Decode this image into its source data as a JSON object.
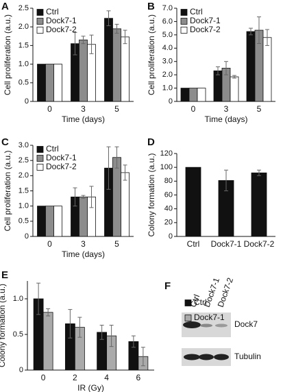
{
  "chart_data": [
    {
      "type": "bar",
      "label": "A",
      "ylabel": "Cell proliferation (a.u.)",
      "xlabel": "Time (days)",
      "categories": [
        "0",
        "3",
        "5"
      ],
      "series": [
        {
          "name": "Ctrl",
          "color": "#111111",
          "values": [
            1,
            1.55,
            2.23
          ],
          "errors": [
            0,
            0.3,
            0.2
          ]
        },
        {
          "name": "Dock7-1",
          "color": "#8c8c8c",
          "values": [
            1,
            1.65,
            1.95
          ],
          "errors": [
            0,
            0.1,
            0.12
          ]
        },
        {
          "name": "Dock7-2",
          "color": "#ffffff",
          "values": [
            1,
            1.53,
            1.73
          ],
          "errors": [
            0,
            0.25,
            0.18
          ]
        }
      ],
      "ylim": [
        0,
        2.5
      ],
      "yticks": [
        0,
        0.5,
        {
          "value": 1,
          "label": "1.0"
        },
        1.5,
        {
          "value": 2,
          "label": "2.0"
        },
        2.5
      ],
      "legend": "top-left"
    },
    {
      "type": "bar",
      "label": "B",
      "ylabel": "Cell proliferation (a.u.)",
      "xlabel": "Time (days)",
      "categories": [
        "0",
        "3",
        "5"
      ],
      "series": [
        {
          "name": "Ctrl",
          "color": "#111111",
          "values": [
            1,
            2.3,
            5.25
          ],
          "errors": [
            0,
            0.3,
            0.25
          ]
        },
        {
          "name": "Dock7-1",
          "color": "#8c8c8c",
          "values": [
            1,
            2.5,
            5.35
          ],
          "errors": [
            0,
            0.5,
            1.0
          ]
        },
        {
          "name": "Dock7-2",
          "color": "#ffffff",
          "values": [
            1,
            1.85,
            4.8
          ],
          "errors": [
            0,
            0.1,
            0.6
          ]
        }
      ],
      "ylim": [
        0,
        7
      ],
      "yticks": [
        0,
        {
          "value": 1,
          "label": "1.0"
        },
        {
          "value": 2,
          "label": "2.0"
        },
        {
          "value": 3,
          "label": "3.0"
        },
        {
          "value": 4,
          "label": "4.0"
        },
        {
          "value": 5,
          "label": "5.0"
        },
        {
          "value": 6,
          "label": "6.0"
        },
        {
          "value": 7,
          "label": "7.0"
        }
      ],
      "legend": "top-left"
    },
    {
      "type": "bar",
      "label": "C",
      "ylabel": "Cell proliferation (a.u.)",
      "xlabel": "Time (days)",
      "categories": [
        "0",
        "3",
        "5"
      ],
      "series": [
        {
          "name": "Ctrl",
          "color": "#111111",
          "values": [
            1,
            1.3,
            2.25
          ],
          "errors": [
            0,
            0.3,
            0.7
          ]
        },
        {
          "name": "Dock7-1",
          "color": "#8c8c8c",
          "values": [
            1,
            1.3,
            2.6
          ],
          "errors": [
            0,
            0.05,
            0.35
          ]
        },
        {
          "name": "Dock7-2",
          "color": "#ffffff",
          "values": [
            1,
            1.3,
            2.1
          ],
          "errors": [
            0,
            0.35,
            0.25
          ]
        }
      ],
      "ylim": [
        0,
        3
      ],
      "yticks": [
        0,
        0.5,
        {
          "value": 1,
          "label": "1.0"
        },
        1.5,
        {
          "value": 2,
          "label": "2.0"
        },
        2.5,
        {
          "value": 3,
          "label": "3.0"
        }
      ],
      "legend": "top-left"
    },
    {
      "type": "bar",
      "label": "D",
      "ylabel": "Colony formation (a.u.)",
      "categories": [
        "Ctrl",
        "Dock7-1",
        "Dock7-2"
      ],
      "values": [
        100,
        81,
        92
      ],
      "errors": [
        0,
        15,
        4
      ],
      "color": "#111111",
      "ylim": [
        0,
        120
      ],
      "yticks": [
        0,
        20,
        40,
        60,
        80,
        100,
        120
      ]
    },
    {
      "type": "bar",
      "label": "E",
      "ylabel": "Colony formation (a.u.)",
      "xlabel": "IR (Gy)",
      "categories": [
        "0",
        "2",
        "4",
        "6"
      ],
      "series": [
        {
          "name": "Ctrl",
          "color": "#111111",
          "values": [
            1.0,
            0.65,
            0.53,
            0.4
          ],
          "errors": [
            0.22,
            0.2,
            0.1,
            0.08
          ]
        },
        {
          "name": "Dock7-1",
          "color": "#aaaaaa",
          "values": [
            0.81,
            0.6,
            0.48,
            0.19
          ],
          "errors": [
            0.05,
            0.14,
            0.15,
            0.13
          ]
        }
      ],
      "ylim": [
        0,
        1.25
      ],
      "yticks": [
        0,
        0.5,
        {
          "value": 1,
          "label": "1.0"
        }
      ],
      "legend": "right"
    }
  ],
  "blot": {
    "label": "F",
    "lanes": [
      "Ctrl",
      "Dock7-1",
      "Dock7-2"
    ],
    "bands": [
      "Dock7",
      "Tubulin"
    ]
  }
}
